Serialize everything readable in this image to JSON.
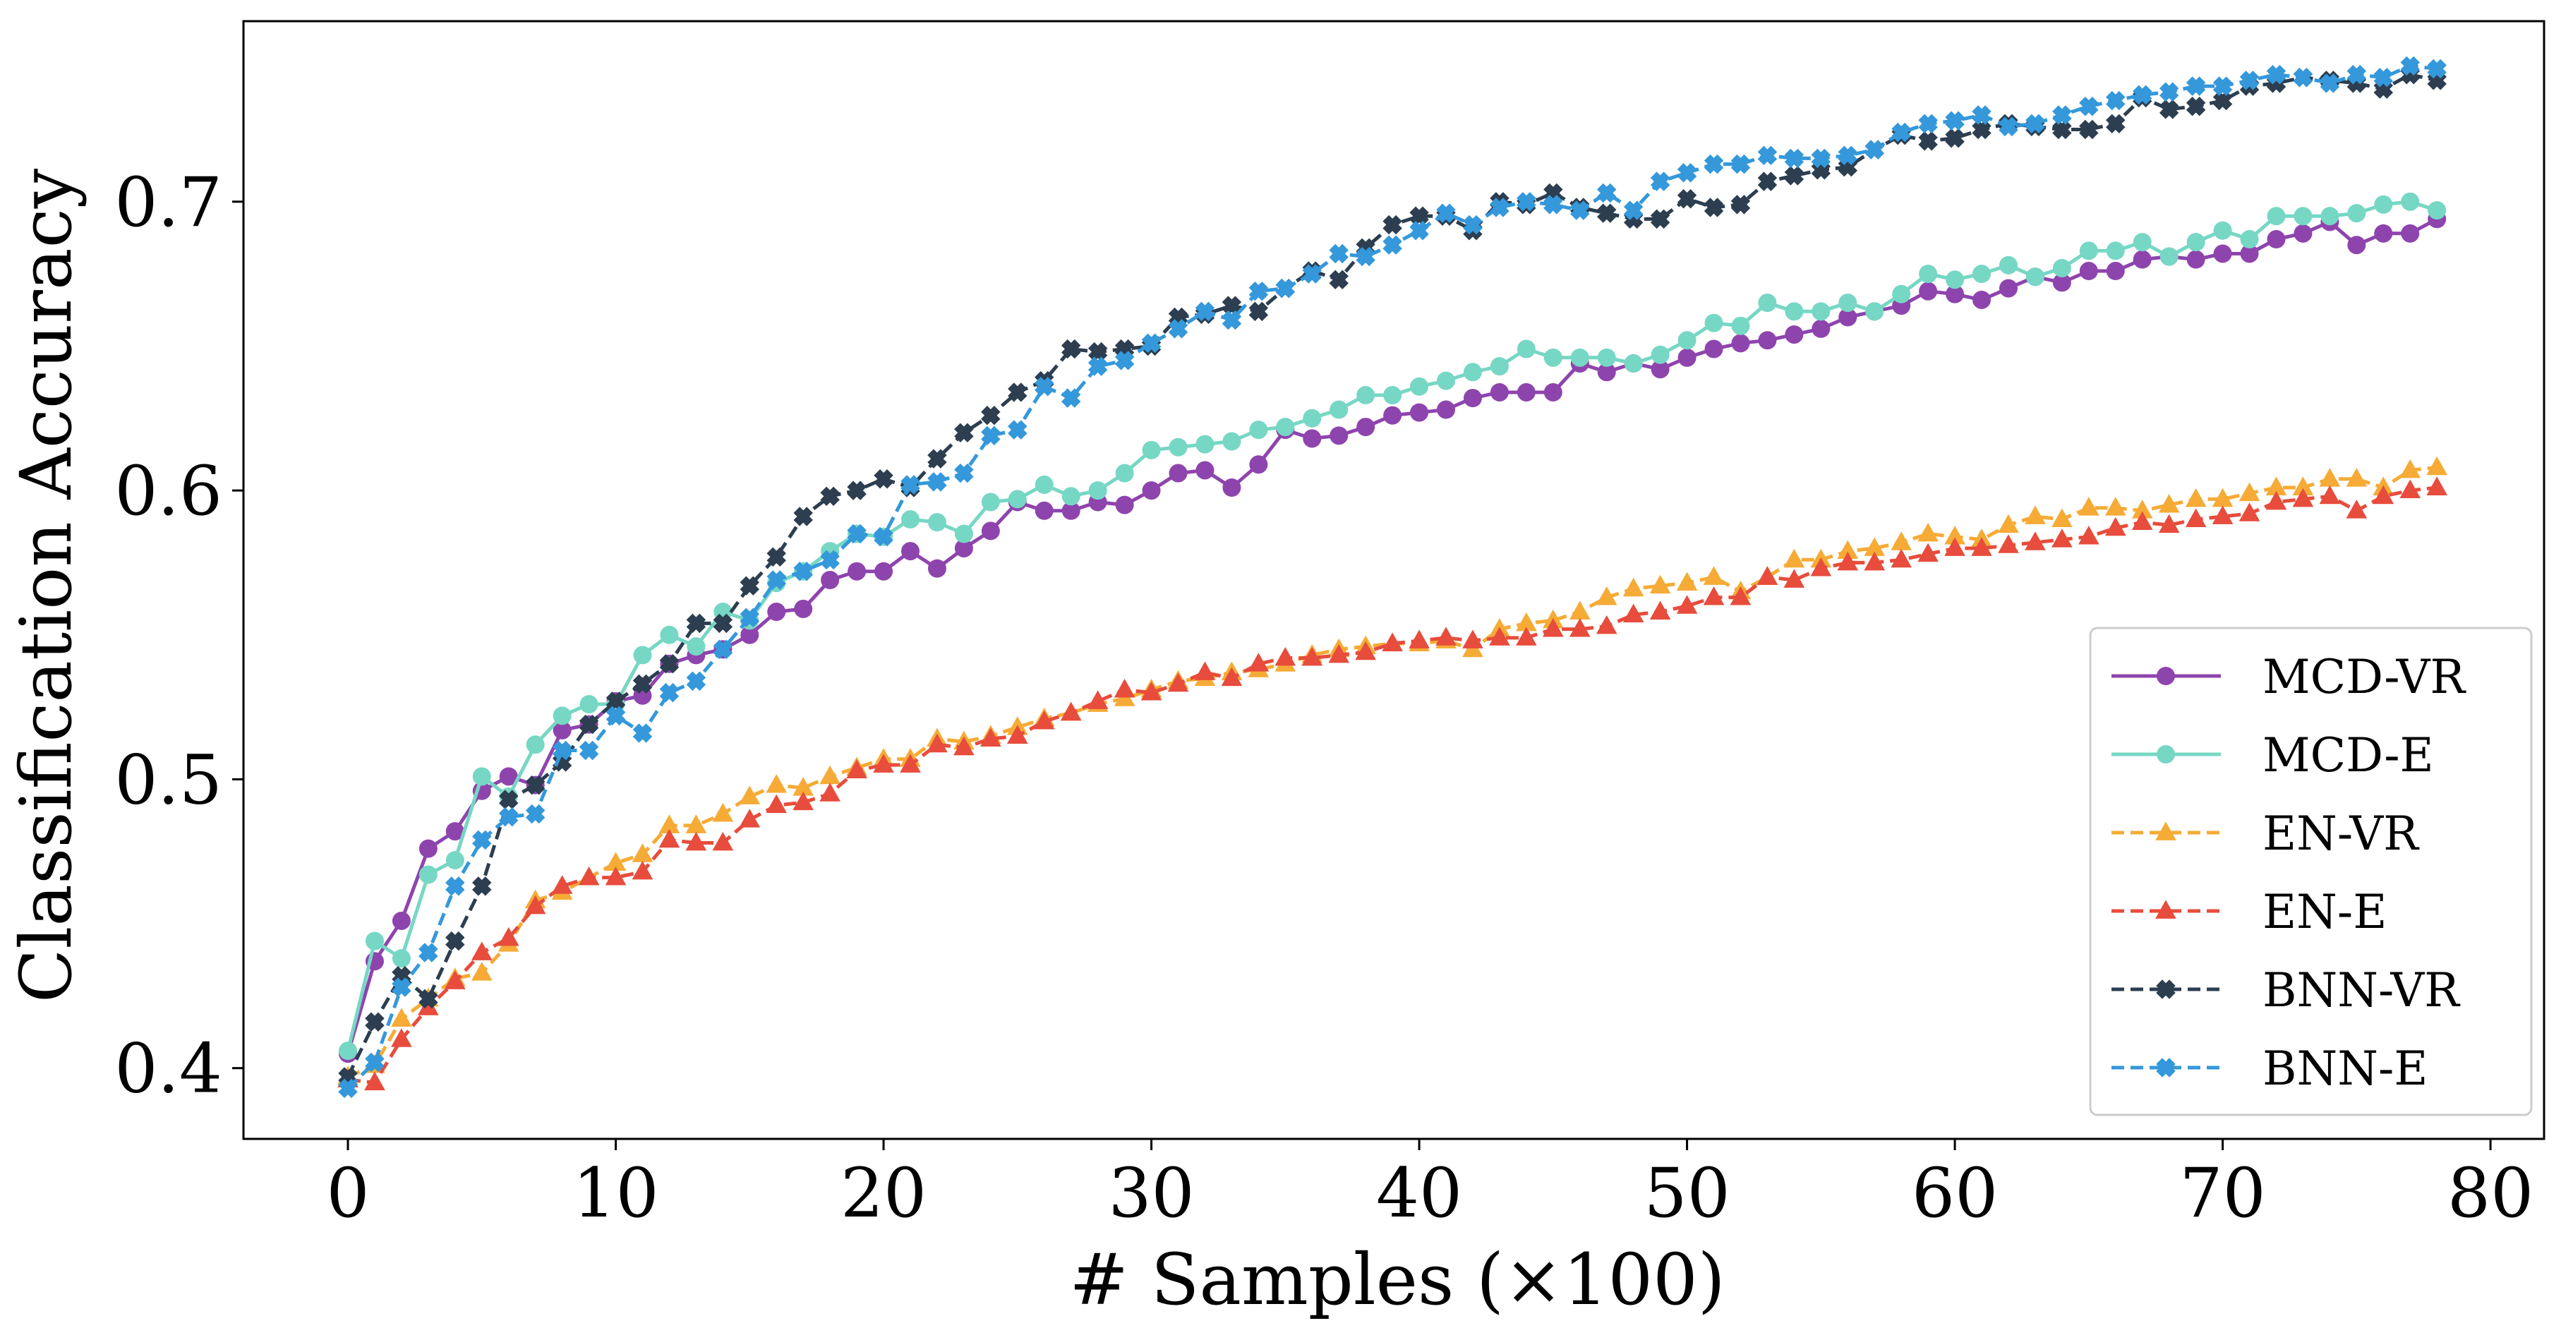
{
  "chart_data": {
    "type": "line",
    "title": "",
    "xlabel": "# Samples (×100)",
    "ylabel": "Classification Accuracy",
    "xlim": [
      -3.9,
      82.0
    ],
    "ylim": [
      0.3755,
      0.7625
    ],
    "xticks": [
      0,
      10,
      20,
      30,
      40,
      50,
      60,
      70,
      80
    ],
    "xtick_labels": [
      "0",
      "10",
      "20",
      "30",
      "40",
      "50",
      "60",
      "70",
      "80"
    ],
    "yticks": [
      0.4,
      0.5,
      0.6,
      0.7
    ],
    "ytick_labels": [
      "0.4",
      "0.5",
      "0.6",
      "0.7"
    ],
    "grid": false,
    "legend_position": "lower-right",
    "x": [
      0,
      1,
      2,
      3,
      4,
      5,
      6,
      7,
      8,
      9,
      10,
      11,
      12,
      13,
      14,
      15,
      16,
      17,
      18,
      19,
      20,
      21,
      22,
      23,
      24,
      25,
      26,
      27,
      28,
      29,
      30,
      31,
      32,
      33,
      34,
      35,
      36,
      37,
      38,
      39,
      40,
      41,
      42,
      43,
      44,
      45,
      46,
      47,
      48,
      49,
      50,
      51,
      52,
      53,
      54,
      55,
      56,
      57,
      58,
      59,
      60,
      61,
      62,
      63,
      64,
      65,
      66,
      67,
      68,
      69,
      70,
      71,
      72,
      73,
      74,
      75,
      76,
      77,
      78
    ],
    "series": [
      {
        "name": "MCD-VR",
        "color": "#8e44ad",
        "dash": "solid",
        "marker": "circle",
        "values": [
          0.405,
          0.437,
          0.451,
          0.476,
          0.482,
          0.496,
          0.501,
          0.498,
          0.517,
          0.519,
          0.527,
          0.529,
          0.54,
          0.543,
          0.545,
          0.55,
          0.558,
          0.559,
          0.569,
          0.572,
          0.572,
          0.579,
          0.573,
          0.58,
          0.586,
          0.596,
          0.593,
          0.593,
          0.596,
          0.595,
          0.6,
          0.606,
          0.607,
          0.601,
          0.609,
          0.621,
          0.618,
          0.619,
          0.622,
          0.626,
          0.627,
          0.628,
          0.632,
          0.634,
          0.634,
          0.634,
          0.644,
          0.641,
          0.644,
          0.642,
          0.646,
          0.649,
          0.651,
          0.652,
          0.654,
          0.656,
          0.66,
          0.662,
          0.664,
          0.669,
          0.668,
          0.666,
          0.67,
          0.674,
          0.672,
          0.676,
          0.676,
          0.68,
          0.681,
          0.68,
          0.682,
          0.682,
          0.687,
          0.689,
          0.693,
          0.685,
          0.689,
          0.689,
          0.694
        ]
      },
      {
        "name": "MCD-E",
        "color": "#76d7c4",
        "dash": "solid",
        "marker": "circle",
        "values": [
          0.406,
          0.444,
          0.438,
          0.467,
          0.472,
          0.501,
          0.494,
          0.512,
          0.522,
          0.526,
          0.526,
          0.543,
          0.55,
          0.546,
          0.558,
          0.555,
          0.568,
          0.572,
          0.579,
          0.585,
          0.584,
          0.59,
          0.589,
          0.585,
          0.596,
          0.597,
          0.602,
          0.598,
          0.6,
          0.606,
          0.614,
          0.615,
          0.616,
          0.617,
          0.621,
          0.622,
          0.625,
          0.628,
          0.633,
          0.633,
          0.636,
          0.638,
          0.641,
          0.643,
          0.649,
          0.646,
          0.646,
          0.646,
          0.644,
          0.647,
          0.652,
          0.658,
          0.657,
          0.665,
          0.662,
          0.662,
          0.665,
          0.662,
          0.668,
          0.675,
          0.673,
          0.675,
          0.678,
          0.674,
          0.677,
          0.683,
          0.683,
          0.686,
          0.681,
          0.686,
          0.69,
          0.687,
          0.695,
          0.695,
          0.695,
          0.696,
          0.699,
          0.7,
          0.697
        ]
      },
      {
        "name": "EN-VR",
        "color": "#f5ab35",
        "dash": "dashed",
        "marker": "triangle",
        "values": [
          0.397,
          0.401,
          0.417,
          0.424,
          0.431,
          0.433,
          0.443,
          0.458,
          0.461,
          0.466,
          0.471,
          0.474,
          0.484,
          0.484,
          0.488,
          0.494,
          0.498,
          0.497,
          0.501,
          0.504,
          0.507,
          0.507,
          0.514,
          0.513,
          0.515,
          0.518,
          0.521,
          0.523,
          0.526,
          0.528,
          0.531,
          0.534,
          0.535,
          0.537,
          0.538,
          0.54,
          0.543,
          0.545,
          0.546,
          0.547,
          0.547,
          0.548,
          0.545,
          0.552,
          0.554,
          0.555,
          0.558,
          0.563,
          0.566,
          0.567,
          0.568,
          0.57,
          0.565,
          0.57,
          0.576,
          0.576,
          0.579,
          0.58,
          0.582,
          0.585,
          0.584,
          0.583,
          0.588,
          0.591,
          0.59,
          0.594,
          0.594,
          0.593,
          0.595,
          0.597,
          0.597,
          0.599,
          0.601,
          0.601,
          0.604,
          0.604,
          0.601,
          0.607,
          0.608
        ]
      },
      {
        "name": "EN-E",
        "color": "#e74c3c",
        "dash": "dashed",
        "marker": "triangle",
        "values": [
          0.396,
          0.395,
          0.41,
          0.421,
          0.43,
          0.44,
          0.445,
          0.456,
          0.463,
          0.466,
          0.466,
          0.468,
          0.479,
          0.478,
          0.478,
          0.486,
          0.491,
          0.492,
          0.495,
          0.503,
          0.505,
          0.505,
          0.512,
          0.511,
          0.514,
          0.515,
          0.52,
          0.523,
          0.527,
          0.531,
          0.53,
          0.533,
          0.537,
          0.535,
          0.54,
          0.542,
          0.542,
          0.543,
          0.544,
          0.547,
          0.548,
          0.549,
          0.548,
          0.549,
          0.549,
          0.552,
          0.552,
          0.553,
          0.557,
          0.558,
          0.56,
          0.563,
          0.563,
          0.57,
          0.569,
          0.573,
          0.575,
          0.575,
          0.576,
          0.578,
          0.58,
          0.58,
          0.581,
          0.582,
          0.583,
          0.584,
          0.587,
          0.589,
          0.588,
          0.59,
          0.591,
          0.592,
          0.596,
          0.597,
          0.598,
          0.593,
          0.598,
          0.6,
          0.601
        ]
      },
      {
        "name": "BNN-VR",
        "color": "#2c3e50",
        "dash": "dashed",
        "marker": "x",
        "values": [
          0.397,
          0.416,
          0.432,
          0.424,
          0.444,
          0.463,
          0.493,
          0.498,
          0.506,
          0.519,
          0.527,
          0.533,
          0.54,
          0.554,
          0.554,
          0.567,
          0.577,
          0.591,
          0.598,
          0.6,
          0.604,
          0.601,
          0.611,
          0.62,
          0.626,
          0.634,
          0.638,
          0.649,
          0.648,
          0.649,
          0.65,
          0.66,
          0.661,
          0.664,
          0.662,
          0.67,
          0.676,
          0.673,
          0.684,
          0.692,
          0.695,
          0.695,
          0.69,
          0.7,
          0.699,
          0.703,
          0.698,
          0.696,
          0.694,
          0.694,
          0.701,
          0.698,
          0.699,
          0.707,
          0.709,
          0.711,
          0.712,
          0.718,
          0.723,
          0.721,
          0.722,
          0.725,
          0.727,
          0.726,
          0.725,
          0.725,
          0.727,
          0.736,
          0.732,
          0.733,
          0.735,
          0.74,
          0.741,
          0.743,
          0.742,
          0.741,
          0.739,
          0.744,
          0.742
        ]
      },
      {
        "name": "BNN-E",
        "color": "#3498db",
        "dash": "dashed",
        "marker": "x",
        "values": [
          0.393,
          0.402,
          0.428,
          0.44,
          0.463,
          0.479,
          0.487,
          0.488,
          0.51,
          0.51,
          0.522,
          0.516,
          0.53,
          0.534,
          0.545,
          0.556,
          0.569,
          0.572,
          0.576,
          0.585,
          0.584,
          0.602,
          0.603,
          0.606,
          0.619,
          0.621,
          0.636,
          0.632,
          0.643,
          0.645,
          0.651,
          0.656,
          0.662,
          0.659,
          0.669,
          0.67,
          0.675,
          0.682,
          0.681,
          0.685,
          0.69,
          0.696,
          0.692,
          0.698,
          0.7,
          0.699,
          0.697,
          0.703,
          0.697,
          0.707,
          0.71,
          0.713,
          0.713,
          0.716,
          0.715,
          0.715,
          0.716,
          0.718,
          0.724,
          0.727,
          0.728,
          0.73,
          0.726,
          0.727,
          0.73,
          0.733,
          0.735,
          0.737,
          0.738,
          0.74,
          0.74,
          0.742,
          0.744,
          0.743,
          0.741,
          0.744,
          0.743,
          0.747,
          0.746
        ]
      }
    ]
  }
}
